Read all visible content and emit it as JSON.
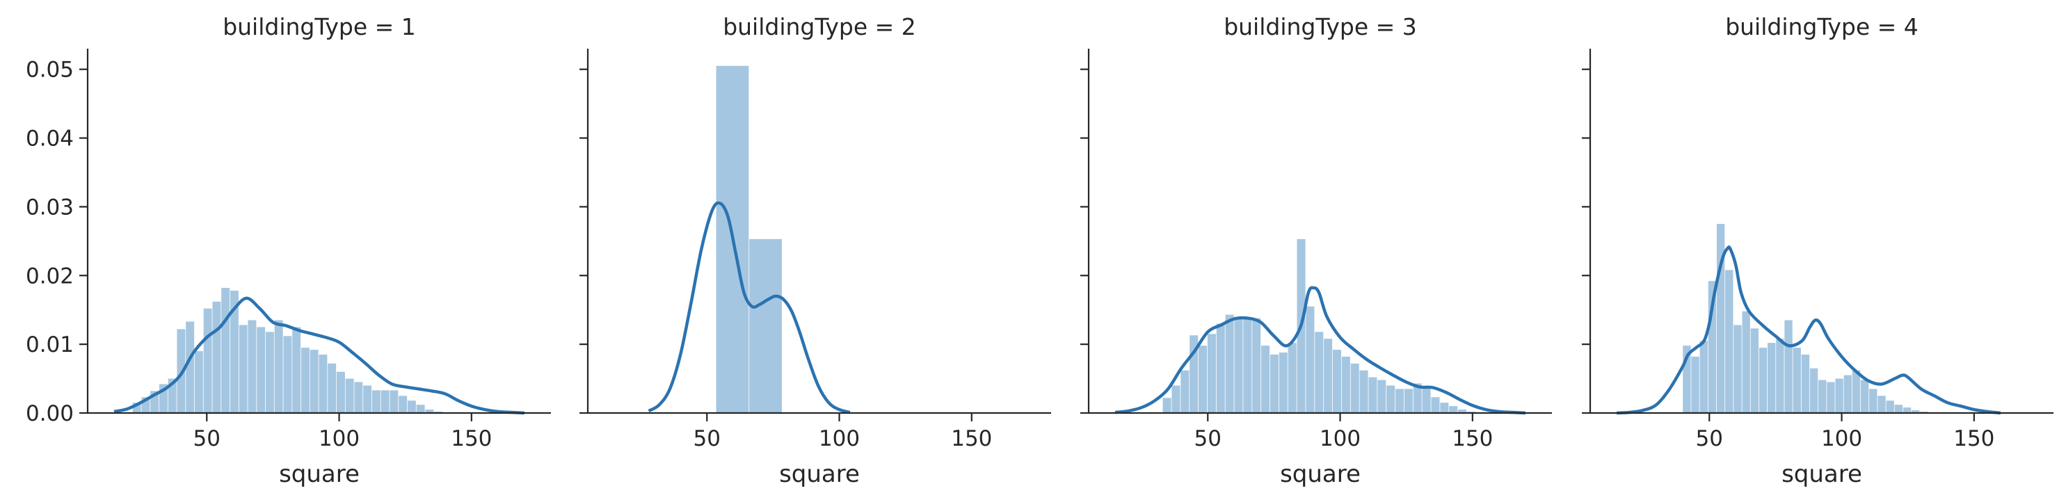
{
  "chart_data": {
    "type": "facet-histogram-kde",
    "colors": {
      "bar": "#a5c6e1",
      "kde": "#2b73b0",
      "axis": "#262626"
    },
    "shared": {
      "xlim": [
        5,
        180
      ],
      "ylim": [
        0,
        0.053
      ],
      "xticks": [
        "50",
        "100",
        "150"
      ],
      "xtick_values": [
        50,
        100,
        150
      ],
      "yticks": [
        "0.00",
        "0.01",
        "0.02",
        "0.03",
        "0.04",
        "0.05"
      ],
      "ytick_values": [
        0,
        0.01,
        0.02,
        0.03,
        0.04,
        0.05
      ],
      "xlabel": "square",
      "grid": false
    },
    "panels": [
      {
        "title": "buildingType = 1",
        "bins": {
          "start": 22,
          "width": 3.35,
          "values": [
            0.0015,
            0.0023,
            0.0032,
            0.0042,
            0.005,
            0.0122,
            0.0133,
            0.009,
            0.0152,
            0.0162,
            0.0182,
            0.0178,
            0.0128,
            0.0135,
            0.0125,
            0.0118,
            0.0135,
            0.0112,
            0.0125,
            0.0095,
            0.0092,
            0.0085,
            0.0072,
            0.006,
            0.005,
            0.0045,
            0.004,
            0.0033,
            0.0033,
            0.0033,
            0.0025,
            0.0018,
            0.0012,
            0.0005,
            0.0002
          ]
        },
        "kde": {
          "x": [
            15,
            20,
            25,
            30,
            35,
            40,
            45,
            50,
            55,
            60,
            65,
            70,
            75,
            80,
            85,
            90,
            95,
            100,
            105,
            110,
            115,
            120,
            125,
            130,
            135,
            140,
            145,
            150,
            155,
            160,
            165,
            170
          ],
          "y": [
            0.0002,
            0.0006,
            0.0015,
            0.0026,
            0.0037,
            0.0055,
            0.0088,
            0.011,
            0.0125,
            0.015,
            0.0167,
            0.0152,
            0.0132,
            0.0127,
            0.012,
            0.0115,
            0.011,
            0.0103,
            0.0088,
            0.0072,
            0.0055,
            0.0042,
            0.0038,
            0.0035,
            0.0032,
            0.0028,
            0.0018,
            0.001,
            0.0005,
            0.0002,
            0.0001,
            0
          ]
        }
      },
      {
        "title": "buildingType = 2",
        "bins": {
          "start": 53.5,
          "width": 12.5,
          "values": [
            0.0505,
            0.0253
          ]
        },
        "kde": {
          "x": [
            28,
            32,
            36,
            40,
            44,
            48,
            52,
            55,
            58,
            61,
            64,
            67,
            70,
            73,
            76,
            79,
            82,
            85,
            88,
            92,
            96,
            100,
            104
          ],
          "y": [
            0.0003,
            0.0012,
            0.0035,
            0.0085,
            0.016,
            0.024,
            0.0295,
            0.0305,
            0.0285,
            0.023,
            0.0175,
            0.0155,
            0.0158,
            0.0165,
            0.017,
            0.0165,
            0.0148,
            0.0118,
            0.0082,
            0.004,
            0.0015,
            0.0005,
            0.0001
          ]
        }
      },
      {
        "title": "buildingType = 3",
        "bins": {
          "start": 33,
          "width": 3.38,
          "values": [
            0.0022,
            0.004,
            0.0062,
            0.0113,
            0.0098,
            0.0115,
            0.013,
            0.0143,
            0.014,
            0.0138,
            0.0138,
            0.0098,
            0.0085,
            0.0088,
            0.0102,
            0.0253,
            0.0155,
            0.0118,
            0.0108,
            0.0092,
            0.0082,
            0.0072,
            0.0062,
            0.0052,
            0.0048,
            0.004,
            0.0035,
            0.0035,
            0.0043,
            0.0038,
            0.0023,
            0.0015,
            0.001,
            0.0005,
            0.0002
          ]
        },
        "kde": {
          "x": [
            15,
            20,
            25,
            30,
            35,
            40,
            45,
            50,
            55,
            60,
            65,
            70,
            75,
            80,
            85,
            88,
            90,
            92,
            95,
            100,
            105,
            110,
            115,
            120,
            125,
            130,
            135,
            140,
            145,
            150,
            155,
            160,
            165,
            170
          ],
          "y": [
            0.0001,
            0.0003,
            0.0008,
            0.0018,
            0.0035,
            0.0065,
            0.009,
            0.0118,
            0.0128,
            0.0137,
            0.0138,
            0.0132,
            0.0112,
            0.0098,
            0.0125,
            0.0175,
            0.0182,
            0.0175,
            0.014,
            0.011,
            0.0093,
            0.0078,
            0.0066,
            0.0055,
            0.0045,
            0.0038,
            0.0037,
            0.003,
            0.002,
            0.0011,
            0.0005,
            0.0002,
            0.0001,
            0
          ]
        }
      },
      {
        "title": "buildingType = 4",
        "bins": {
          "start": 40,
          "width": 3.2,
          "values": [
            0.0098,
            0.0082,
            0.0105,
            0.0192,
            0.0275,
            0.0208,
            0.0128,
            0.0148,
            0.0123,
            0.0095,
            0.0102,
            0.0108,
            0.0135,
            0.0095,
            0.0085,
            0.0065,
            0.0048,
            0.0045,
            0.005,
            0.0055,
            0.0062,
            0.0048,
            0.0035,
            0.0025,
            0.0018,
            0.0012,
            0.0008,
            0.0004,
            0.0002,
            0.0001,
            0,
            0
          ]
        },
        "kde": {
          "x": [
            15,
            20,
            25,
            30,
            35,
            40,
            42,
            45,
            48,
            50,
            52,
            55,
            57,
            58,
            60,
            62,
            65,
            70,
            75,
            80,
            85,
            88,
            90,
            92,
            95,
            100,
            105,
            110,
            115,
            120,
            123,
            125,
            130,
            135,
            140,
            145,
            150,
            155,
            160
          ],
          "y": [
            0,
            0.0001,
            0.0004,
            0.0012,
            0.0035,
            0.0068,
            0.0085,
            0.0095,
            0.0105,
            0.013,
            0.0175,
            0.0225,
            0.024,
            0.0238,
            0.0215,
            0.0175,
            0.0148,
            0.0128,
            0.0112,
            0.0098,
            0.0105,
            0.0125,
            0.0135,
            0.013,
            0.0108,
            0.0082,
            0.0062,
            0.0047,
            0.0042,
            0.005,
            0.0055,
            0.0052,
            0.0035,
            0.0025,
            0.0015,
            0.001,
            0.0005,
            0.0002,
            0
          ]
        }
      }
    ]
  }
}
